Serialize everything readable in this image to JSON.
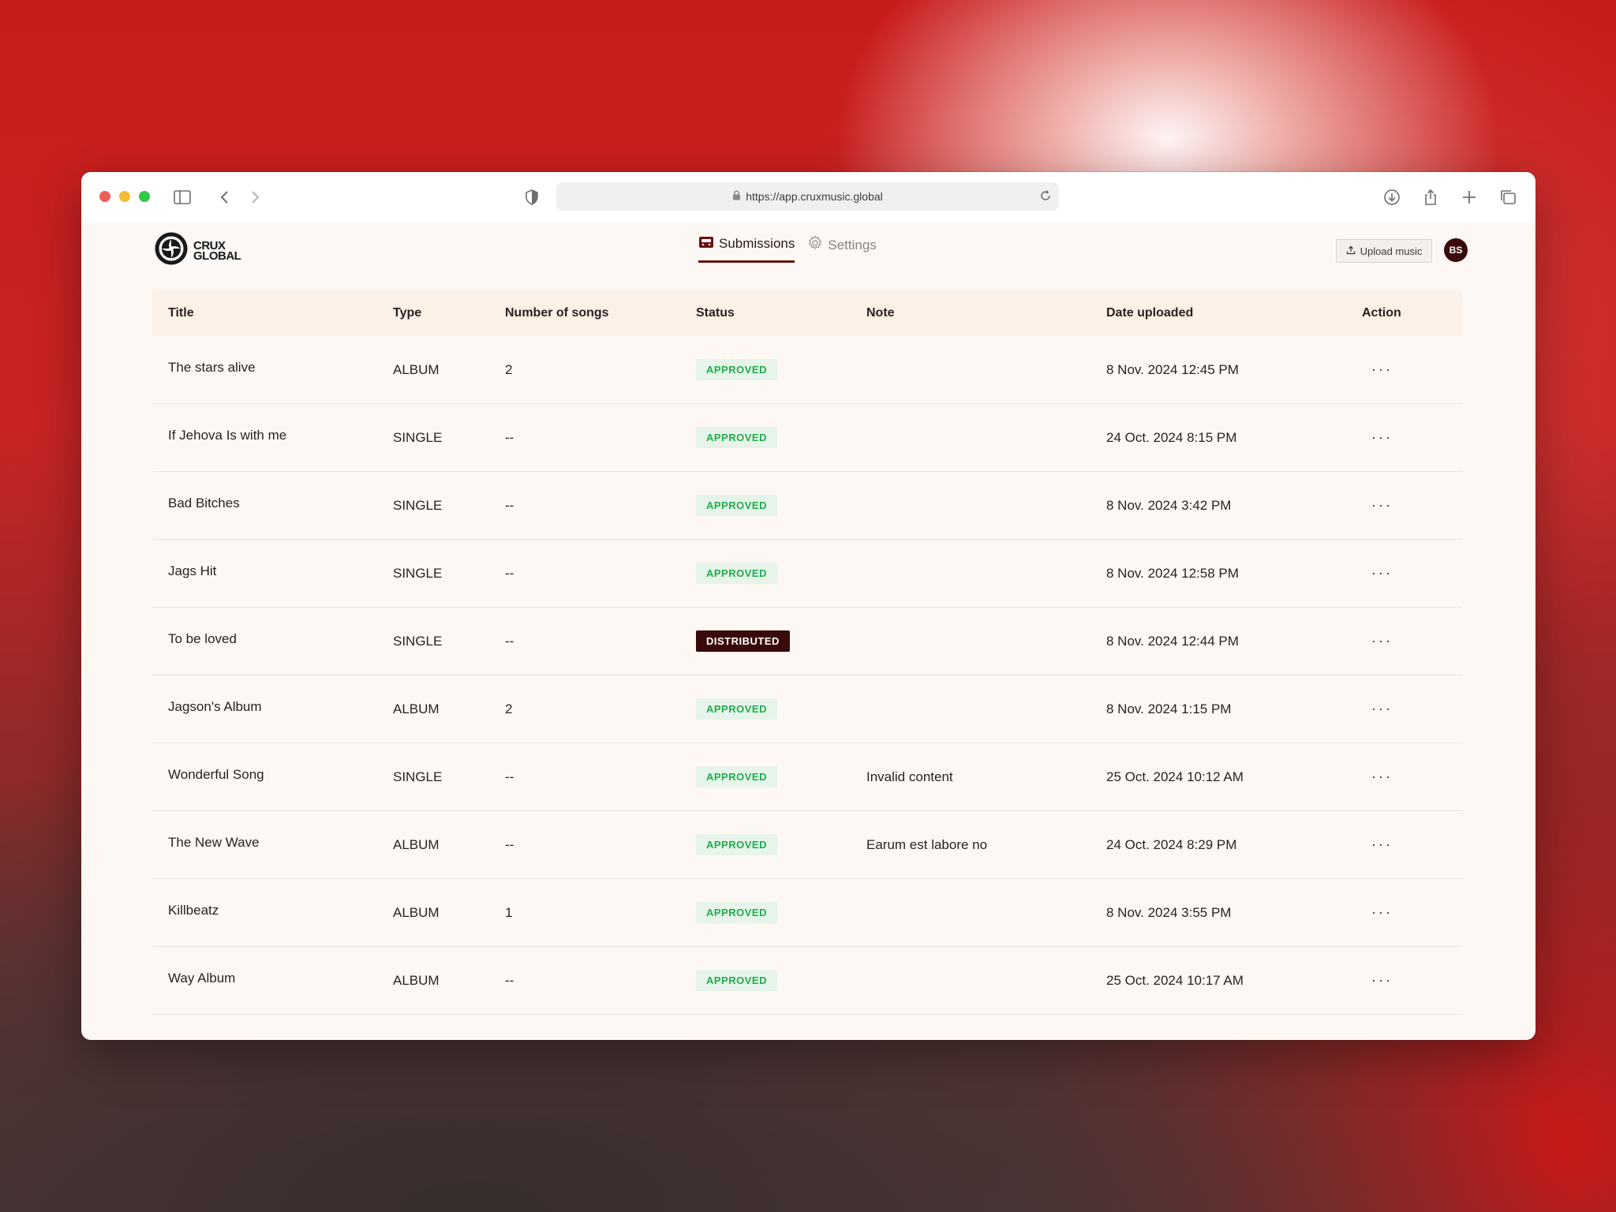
{
  "browser": {
    "url": "https://app.cruxmusic.global"
  },
  "app": {
    "logo_line1": "CRUX",
    "logo_line2": "GLOBAL",
    "nav": [
      {
        "label": "Submissions",
        "icon": "tray-icon",
        "active": true
      },
      {
        "label": "Settings",
        "icon": "gear-icon",
        "active": false
      }
    ],
    "upload_label": "Upload music",
    "avatar_initials": "BS",
    "accent_color": "#3a0a0a"
  },
  "table": {
    "headers": {
      "title": "Title",
      "type": "Type",
      "songs": "Number of songs",
      "status": "Status",
      "note": "Note",
      "date": "Date uploaded",
      "action": "Action"
    },
    "rows": [
      {
        "title": "The stars alive",
        "type": "ALBUM",
        "songs": "2",
        "status": "APPROVED",
        "note": "",
        "date": "8 Nov. 2024 12:45 PM",
        "action": "···"
      },
      {
        "title": "If Jehova Is with me",
        "type": "SINGLE",
        "songs": "--",
        "status": "APPROVED",
        "note": "",
        "date": "24 Oct. 2024 8:15 PM",
        "action": "···"
      },
      {
        "title": "Bad Bitches",
        "type": "SINGLE",
        "songs": "--",
        "status": "APPROVED",
        "note": "",
        "date": "8 Nov. 2024 3:42 PM",
        "action": "···"
      },
      {
        "title": "Jags Hit",
        "type": "SINGLE",
        "songs": "--",
        "status": "APPROVED",
        "note": "",
        "date": "8 Nov. 2024 12:58 PM",
        "action": "···"
      },
      {
        "title": "To be loved",
        "type": "SINGLE",
        "songs": "--",
        "status": "DISTRIBUTED",
        "note": "",
        "date": "8 Nov. 2024 12:44 PM",
        "action": "···"
      },
      {
        "title": "Jagson's Album",
        "type": "ALBUM",
        "songs": "2",
        "status": "APPROVED",
        "note": "",
        "date": "8 Nov. 2024 1:15 PM",
        "action": "···"
      },
      {
        "title": "Wonderful Song",
        "type": "SINGLE",
        "songs": "--",
        "status": "APPROVED",
        "note": "Invalid content",
        "date": "25 Oct. 2024 10:12 AM",
        "action": "···"
      },
      {
        "title": "The New Wave",
        "type": "ALBUM",
        "songs": "--",
        "status": "APPROVED",
        "note": "Earum est labore no",
        "date": "24 Oct. 2024 8:29 PM",
        "action": "···"
      },
      {
        "title": "Killbeatz",
        "type": "ALBUM",
        "songs": "1",
        "status": "APPROVED",
        "note": "",
        "date": "8 Nov. 2024 3:55 PM",
        "action": "···"
      },
      {
        "title": "Way Album",
        "type": "ALBUM",
        "songs": "--",
        "status": "APPROVED",
        "note": "",
        "date": "25 Oct. 2024 10:17 AM",
        "action": "···"
      }
    ]
  }
}
